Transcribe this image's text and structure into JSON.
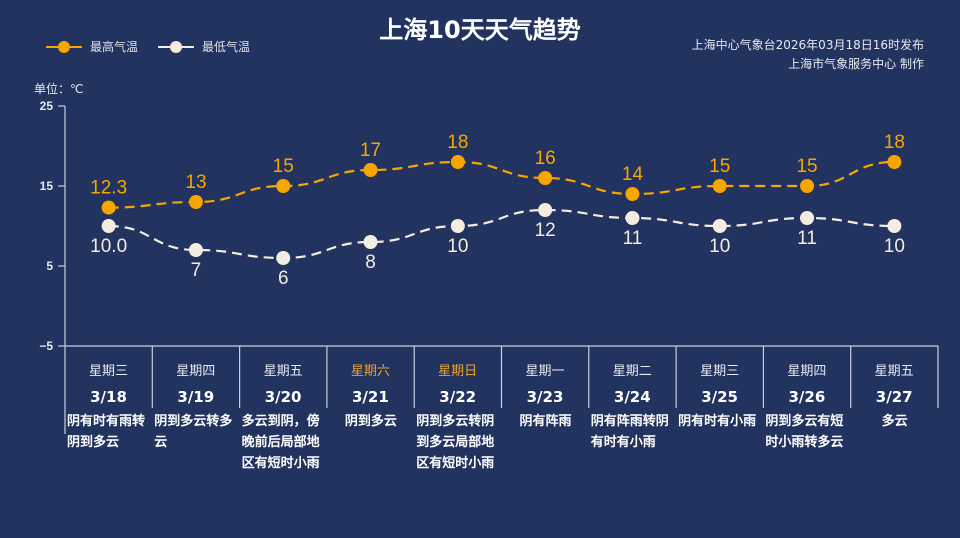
{
  "header": {
    "title": "上海10天天气趋势",
    "source_line1": "上海中心气象台2026年03月18日16时发布",
    "source_line2": "上海市气象服务中心 制作",
    "unit_label": "单位：℃"
  },
  "legend": [
    {
      "label": "最高气温",
      "color": "#f7a600"
    },
    {
      "label": "最低气温",
      "color": "#f3ece0"
    }
  ],
  "colors": {
    "background": "#22335f",
    "high": "#f7a600",
    "low": "#f3ece0",
    "weekend": "#e8a52a",
    "axis": "#c9cfdc"
  },
  "days": [
    {
      "weekday": "星期三",
      "date": "3/18",
      "weather": "阴有时有雨转阴到多云",
      "weekend": false
    },
    {
      "weekday": "星期四",
      "date": "3/19",
      "weather": "阴到多云转多云",
      "weekend": false
    },
    {
      "weekday": "星期五",
      "date": "3/20",
      "weather": "多云到阴，傍晚前后局部地区有短时小雨",
      "weekend": false
    },
    {
      "weekday": "星期六",
      "date": "3/21",
      "weather": "阴到多云",
      "weekend": true
    },
    {
      "weekday": "星期日",
      "date": "3/22",
      "weather": "阴到多云转阴到多云局部地区有短时小雨",
      "weekend": true
    },
    {
      "weekday": "星期一",
      "date": "3/23",
      "weather": "阴有阵雨",
      "weekend": false
    },
    {
      "weekday": "星期二",
      "date": "3/24",
      "weather": "阴有阵雨转阴有时有小雨",
      "weekend": false
    },
    {
      "weekday": "星期三",
      "date": "3/25",
      "weather": "阴有时有小雨",
      "weekend": false
    },
    {
      "weekday": "星期四",
      "date": "3/26",
      "weather": "阴到多云有短时小雨转多云",
      "weekend": false
    },
    {
      "weekday": "星期五",
      "date": "3/27",
      "weather": "多云",
      "weekend": false
    }
  ],
  "chart_data": {
    "type": "line",
    "title": "上海10天天气趋势",
    "xlabel": "",
    "ylabel": "单位：℃",
    "categories": [
      "3/18",
      "3/19",
      "3/20",
      "3/21",
      "3/22",
      "3/23",
      "3/24",
      "3/25",
      "3/26",
      "3/27"
    ],
    "series": [
      {
        "name": "最高气温",
        "values": [
          12.3,
          13,
          15,
          17,
          18,
          16,
          14,
          15,
          15,
          18
        ],
        "labels": [
          "12.3",
          "13",
          "15",
          "17",
          "18",
          "16",
          "14",
          "15",
          "15",
          "18"
        ]
      },
      {
        "name": "最低气温",
        "values": [
          10.0,
          7,
          6,
          8,
          10,
          12,
          11,
          10,
          11,
          10
        ],
        "labels": [
          "10.0",
          "7",
          "6",
          "8",
          "10",
          "12",
          "11",
          "10",
          "11",
          "10"
        ]
      }
    ],
    "yticks": [
      25,
      15,
      5,
      -5
    ],
    "ylim": [
      -5,
      25
    ],
    "grid": false,
    "legend_position": "top-left",
    "line_style": "dashed"
  }
}
